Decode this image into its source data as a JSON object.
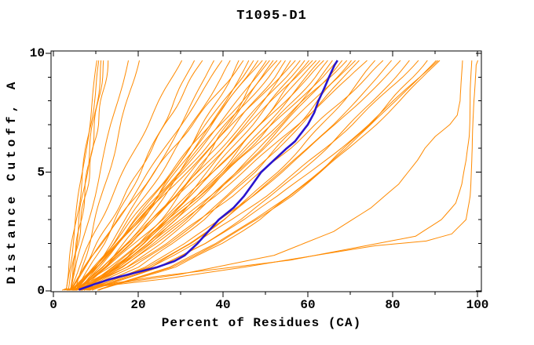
{
  "title": "T1095-D1",
  "colors": {
    "curve": "#ff8a00",
    "highlight": "#2a15cd",
    "frame": "#000000",
    "background": "#ffffff"
  },
  "chart_data": {
    "type": "line",
    "title": "T1095-D1",
    "xlabel": "Percent of Residues (CA)",
    "ylabel": "Distance Cutoff, A",
    "xlim": [
      0,
      100
    ],
    "ylim": [
      0,
      10
    ],
    "grid": false,
    "legend": "none",
    "x_major_ticks": [
      0,
      20,
      40,
      60,
      80,
      100
    ],
    "x_minor_step": 10,
    "y_major_ticks": [
      0,
      5,
      10
    ],
    "y_minor_step": 1,
    "cutoff_grid": [
      0.1,
      1,
      2,
      3,
      4,
      5,
      6,
      7,
      8,
      9,
      9.7
    ],
    "highlight_curve": {
      "points": [
        [
          0.05,
          6
        ],
        [
          0.3,
          10
        ],
        [
          0.5,
          13.5
        ],
        [
          0.75,
          19
        ],
        [
          1,
          24.5
        ],
        [
          1.25,
          28.5
        ],
        [
          1.5,
          31
        ],
        [
          2,
          34
        ],
        [
          2.5,
          36.5
        ],
        [
          3,
          39
        ],
        [
          3.5,
          42.5
        ],
        [
          4,
          45
        ],
        [
          4.5,
          47
        ],
        [
          5,
          49
        ],
        [
          5.5,
          52
        ],
        [
          6,
          55
        ],
        [
          6.3,
          57
        ],
        [
          6.7,
          58.7
        ],
        [
          7,
          60
        ],
        [
          7.5,
          61.5
        ],
        [
          8,
          62.5
        ],
        [
          8.5,
          63.8
        ],
        [
          9,
          65
        ],
        [
          9.5,
          66.3
        ],
        [
          9.7,
          67
        ]
      ]
    },
    "outlier_curves": [
      {
        "points": [
          [
            0.05,
            4
          ],
          [
            0.5,
            26
          ],
          [
            1,
            45
          ],
          [
            1.5,
            62
          ],
          [
            1.9,
            76
          ],
          [
            2.1,
            88
          ],
          [
            2.4,
            94
          ],
          [
            3,
            97.3
          ],
          [
            4,
            98.2
          ],
          [
            6,
            98.8
          ],
          [
            8,
            99.2
          ],
          [
            9.5,
            99.6
          ],
          [
            9.7,
            100
          ]
        ]
      },
      {
        "points": [
          [
            0.05,
            5
          ],
          [
            0.7,
            30
          ],
          [
            1.5,
            52
          ],
          [
            2.5,
            66
          ],
          [
            3.5,
            75
          ],
          [
            4.5,
            81.5
          ],
          [
            5.5,
            85.8
          ],
          [
            6,
            87.5
          ],
          [
            6.5,
            90
          ],
          [
            7,
            93.5
          ],
          [
            7.4,
            95.3
          ],
          [
            8,
            96
          ],
          [
            9,
            96.2
          ],
          [
            9.7,
            96.4
          ]
        ]
      },
      {
        "points": [
          [
            0.05,
            4.5
          ],
          [
            0.6,
            24
          ],
          [
            1.3,
            56
          ],
          [
            2.3,
            85.5
          ],
          [
            3,
            91.5
          ],
          [
            3.7,
            94.8
          ],
          [
            4.5,
            96.3
          ],
          [
            5.5,
            97.4
          ],
          [
            6.5,
            98
          ],
          [
            8,
            98.3
          ],
          [
            9.7,
            98.6
          ]
        ]
      }
    ],
    "model_curves": [
      [
        3.1,
        3.8,
        4.5,
        5.3,
        6.1,
        6.9,
        7.6,
        8.4,
        9.2,
        10.0,
        10.5
      ],
      [
        3.1,
        3.7,
        4.5,
        5.3,
        6.2,
        7.0,
        7.8,
        8.7,
        9.5,
        10.4,
        11.0
      ],
      [
        3.6,
        4.4,
        5.3,
        6.1,
        7.0,
        7.8,
        8.6,
        9.4,
        10.2,
        11.0,
        11.5
      ],
      [
        4.1,
        4.8,
        5.6,
        6.5,
        7.3,
        8.1,
        9.0,
        9.8,
        10.6,
        11.4,
        12.0
      ],
      [
        4.1,
        4.8,
        5.7,
        6.6,
        7.5,
        8.5,
        9.4,
        10.4,
        11.4,
        12.3,
        13.0
      ],
      [
        4.1,
        5.4,
        6.8,
        8.2,
        9.6,
        11.0,
        12.4,
        13.7,
        15.1,
        16.5,
        17.5
      ],
      [
        5.2,
        6.7,
        8.4,
        9.9,
        11.5,
        13.0,
        14.5,
        16.0,
        17.5,
        19.0,
        20.0
      ],
      [
        4.2,
        6.1,
        8.6,
        11.2,
        13.8,
        16.6,
        19.3,
        22.2,
        25.1,
        28.0,
        30.0
      ],
      [
        5.4,
        8.6,
        11.8,
        14.7,
        17.6,
        20.4,
        23.2,
        25.9,
        28.5,
        31.3,
        33.0
      ],
      [
        4.3,
        7.2,
        10.4,
        13.6,
        16.8,
        20.0,
        23.2,
        26.4,
        29.6,
        32.8,
        35.0
      ],
      [
        5.7,
        9.8,
        13.6,
        17.1,
        20.5,
        23.8,
        26.9,
        30.0,
        33.0,
        36.1,
        38.0
      ],
      [
        4.4,
        7.7,
        11.4,
        15.1,
        18.8,
        22.5,
        26.3,
        30.0,
        33.7,
        37.4,
        40.0
      ],
      [
        5.6,
        9.8,
        14.0,
        17.8,
        21.7,
        25.4,
        29.0,
        32.6,
        36.1,
        39.7,
        42.0
      ],
      [
        7.0,
        12.2,
        16.8,
        20.9,
        24.7,
        28.3,
        31.9,
        35.3,
        38.6,
        41.9,
        44.0
      ],
      [
        4.3,
        7.4,
        11.2,
        15.3,
        19.5,
        23.8,
        28.2,
        32.7,
        37.2,
        41.8,
        45.0
      ],
      [
        6.3,
        12.5,
        17.5,
        22.0,
        26.1,
        29.9,
        33.6,
        37.1,
        40.5,
        43.8,
        46.0
      ],
      [
        6.5,
        10.7,
        15.2,
        19.4,
        23.7,
        27.9,
        32.0,
        36.1,
        40.2,
        44.4,
        47.0
      ],
      [
        4.9,
        10.4,
        15.5,
        20.2,
        24.7,
        29.0,
        33.2,
        37.3,
        41.4,
        45.4,
        48.0
      ],
      [
        5.5,
        9.5,
        14.1,
        18.6,
        23.1,
        27.7,
        32.2,
        36.8,
        41.3,
        45.8,
        49.0
      ],
      [
        7.8,
        15.0,
        20.6,
        25.3,
        29.7,
        33.7,
        37.5,
        41.0,
        44.5,
        47.8,
        50.0
      ],
      [
        4.8,
        10.1,
        15.4,
        20.3,
        25.2,
        29.9,
        34.5,
        39.0,
        43.5,
        48.1,
        51.0
      ],
      [
        6.2,
        12.6,
        18.3,
        23.4,
        28.1,
        32.6,
        37.0,
        41.2,
        45.3,
        49.4,
        52.0
      ],
      [
        6.4,
        10.3,
        15.0,
        19.7,
        24.5,
        29.5,
        34.4,
        39.4,
        44.4,
        49.5,
        53.0
      ],
      [
        4.7,
        9.8,
        15.2,
        20.4,
        25.6,
        30.7,
        35.7,
        40.7,
        45.7,
        50.8,
        54.0
      ],
      [
        6.1,
        12.3,
        18.1,
        23.4,
        28.6,
        33.5,
        38.2,
        42.9,
        47.5,
        52.1,
        55.0
      ],
      [
        7.6,
        15.1,
        21.3,
        26.7,
        31.8,
        36.4,
        40.9,
        45.2,
        49.3,
        53.3,
        56.0
      ],
      [
        4.5,
        9.5,
        14.9,
        20.4,
        25.8,
        31.3,
        36.8,
        42.3,
        47.7,
        53.2,
        57.0
      ],
      [
        5.8,
        11.8,
        17.8,
        23.4,
        28.9,
        34.2,
        39.4,
        44.5,
        49.6,
        54.7,
        58.0
      ],
      [
        7.4,
        14.6,
        21.0,
        26.7,
        32.1,
        37.2,
        42.1,
        46.8,
        51.4,
        56.0,
        59.0
      ],
      [
        6.3,
        15.4,
        22.5,
        28.6,
        34.1,
        39.2,
        44.0,
        48.6,
        52.9,
        57.1,
        60.0
      ],
      [
        5.7,
        11.4,
        17.5,
        23.4,
        29.2,
        34.8,
        40.4,
        46.0,
        51.6,
        57.4,
        61.0
      ],
      [
        7.2,
        14.1,
        20.6,
        26.6,
        32.4,
        37.9,
        43.2,
        48.4,
        53.5,
        58.7,
        62.0
      ],
      [
        5.9,
        14.7,
        22.1,
        28.4,
        34.4,
        39.9,
        45.2,
        50.2,
        55.0,
        59.8,
        63.0
      ],
      [
        5.9,
        12.6,
        19.3,
        25.5,
        31.6,
        37.5,
        43.3,
        49.0,
        54.6,
        60.3,
        64.0
      ],
      [
        7.5,
        15.6,
        22.7,
        29.1,
        35.0,
        40.7,
        46.2,
        51.4,
        56.6,
        61.7,
        65.0
      ],
      [
        7.5,
        17.4,
        25.2,
        31.8,
        37.8,
        43.4,
        48.6,
        53.6,
        58.3,
        62.9,
        66.0
      ],
      [
        5.3,
        13.1,
        20.4,
        27.2,
        33.7,
        39.8,
        45.8,
        51.7,
        57.5,
        63.3,
        67.0
      ],
      [
        7.0,
        16.5,
        24.3,
        31.1,
        37.4,
        43.3,
        49.0,
        54.3,
        59.5,
        64.6,
        68.0
      ],
      [
        7.0,
        14.1,
        21.2,
        27.9,
        34.4,
        40.7,
        46.9,
        52.9,
        59.0,
        65.1,
        69.0
      ],
      [
        8.3,
        20.0,
        28.3,
        35.3,
        41.5,
        47.3,
        52.6,
        57.7,
        62.3,
        67.0,
        70.0
      ],
      [
        5.7,
        14.9,
        23.0,
        30.2,
        37.0,
        43.4,
        49.6,
        55.6,
        61.4,
        67.2,
        71.0
      ],
      [
        7.7,
        18.7,
        27.2,
        34.4,
        41.0,
        47.1,
        52.9,
        58.3,
        63.6,
        68.6,
        72.0
      ],
      [
        7.4,
        15.9,
        23.7,
        31.0,
        38.0,
        44.7,
        51.2,
        57.5,
        63.7,
        70.0,
        74.0
      ],
      [
        9.5,
        23.2,
        32.5,
        40.1,
        46.7,
        52.7,
        58.3,
        63.4,
        68.3,
        72.9,
        76.0
      ],
      [
        6.4,
        17.5,
        26.6,
        34.6,
        42.1,
        49.0,
        55.7,
        61.9,
        68.0,
        74.0,
        78.0
      ],
      [
        8.8,
        22.3,
        31.9,
        40.0,
        47.2,
        53.8,
        59.9,
        65.8,
        71.2,
        76.5,
        80.0
      ],
      [
        9.1,
        21.5,
        31.2,
        39.4,
        46.9,
        53.8,
        60.3,
        66.5,
        72.4,
        78.1,
        82.0
      ],
      [
        10.1,
        25.2,
        35.7,
        44.0,
        51.5,
        58.1,
        64.3,
        69.9,
        75.4,
        80.5,
        84.0
      ],
      [
        8.2,
        22.9,
        33.4,
        42.2,
        50.1,
        57.3,
        64.0,
        70.4,
        76.3,
        82.1,
        86.0
      ],
      [
        11.7,
        28.8,
        39.9,
        48.5,
        56.0,
        62.6,
        68.7,
        74.4,
        79.6,
        84.7,
        88.0
      ],
      [
        11.4,
        27.5,
        38.6,
        47.5,
        55.4,
        62.4,
        69.0,
        75.1,
        80.9,
        86.3,
        90.0
      ],
      [
        9.4,
        24.8,
        35.6,
        44.8,
        53.1,
        60.6,
        67.6,
        74.3,
        80.4,
        86.5,
        90.5
      ],
      [
        11.4,
        27.8,
        39.0,
        48.0,
        56.0,
        63.1,
        69.8,
        75.9,
        81.7,
        87.3,
        91.0
      ]
    ]
  }
}
